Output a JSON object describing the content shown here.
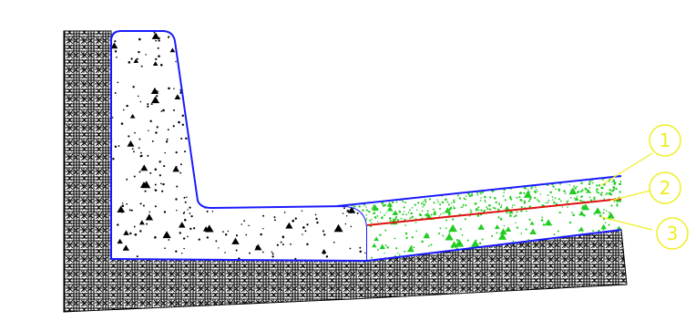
{
  "colors": {
    "background": "#ffffff",
    "hatch": "#000000",
    "outline": "#1a1aff",
    "concrete_fill": "#ffffff",
    "concrete_speckle": "#000000",
    "layer_speckle": "#22cc22",
    "divider_line": "#e01010",
    "callout": "#eeee22"
  },
  "callouts": [
    {
      "label": "1",
      "points_to": "upper-granular-layer"
    },
    {
      "label": "2",
      "points_to": "red-divider-line"
    },
    {
      "label": "3",
      "points_to": "lower-granular-layer"
    }
  ]
}
